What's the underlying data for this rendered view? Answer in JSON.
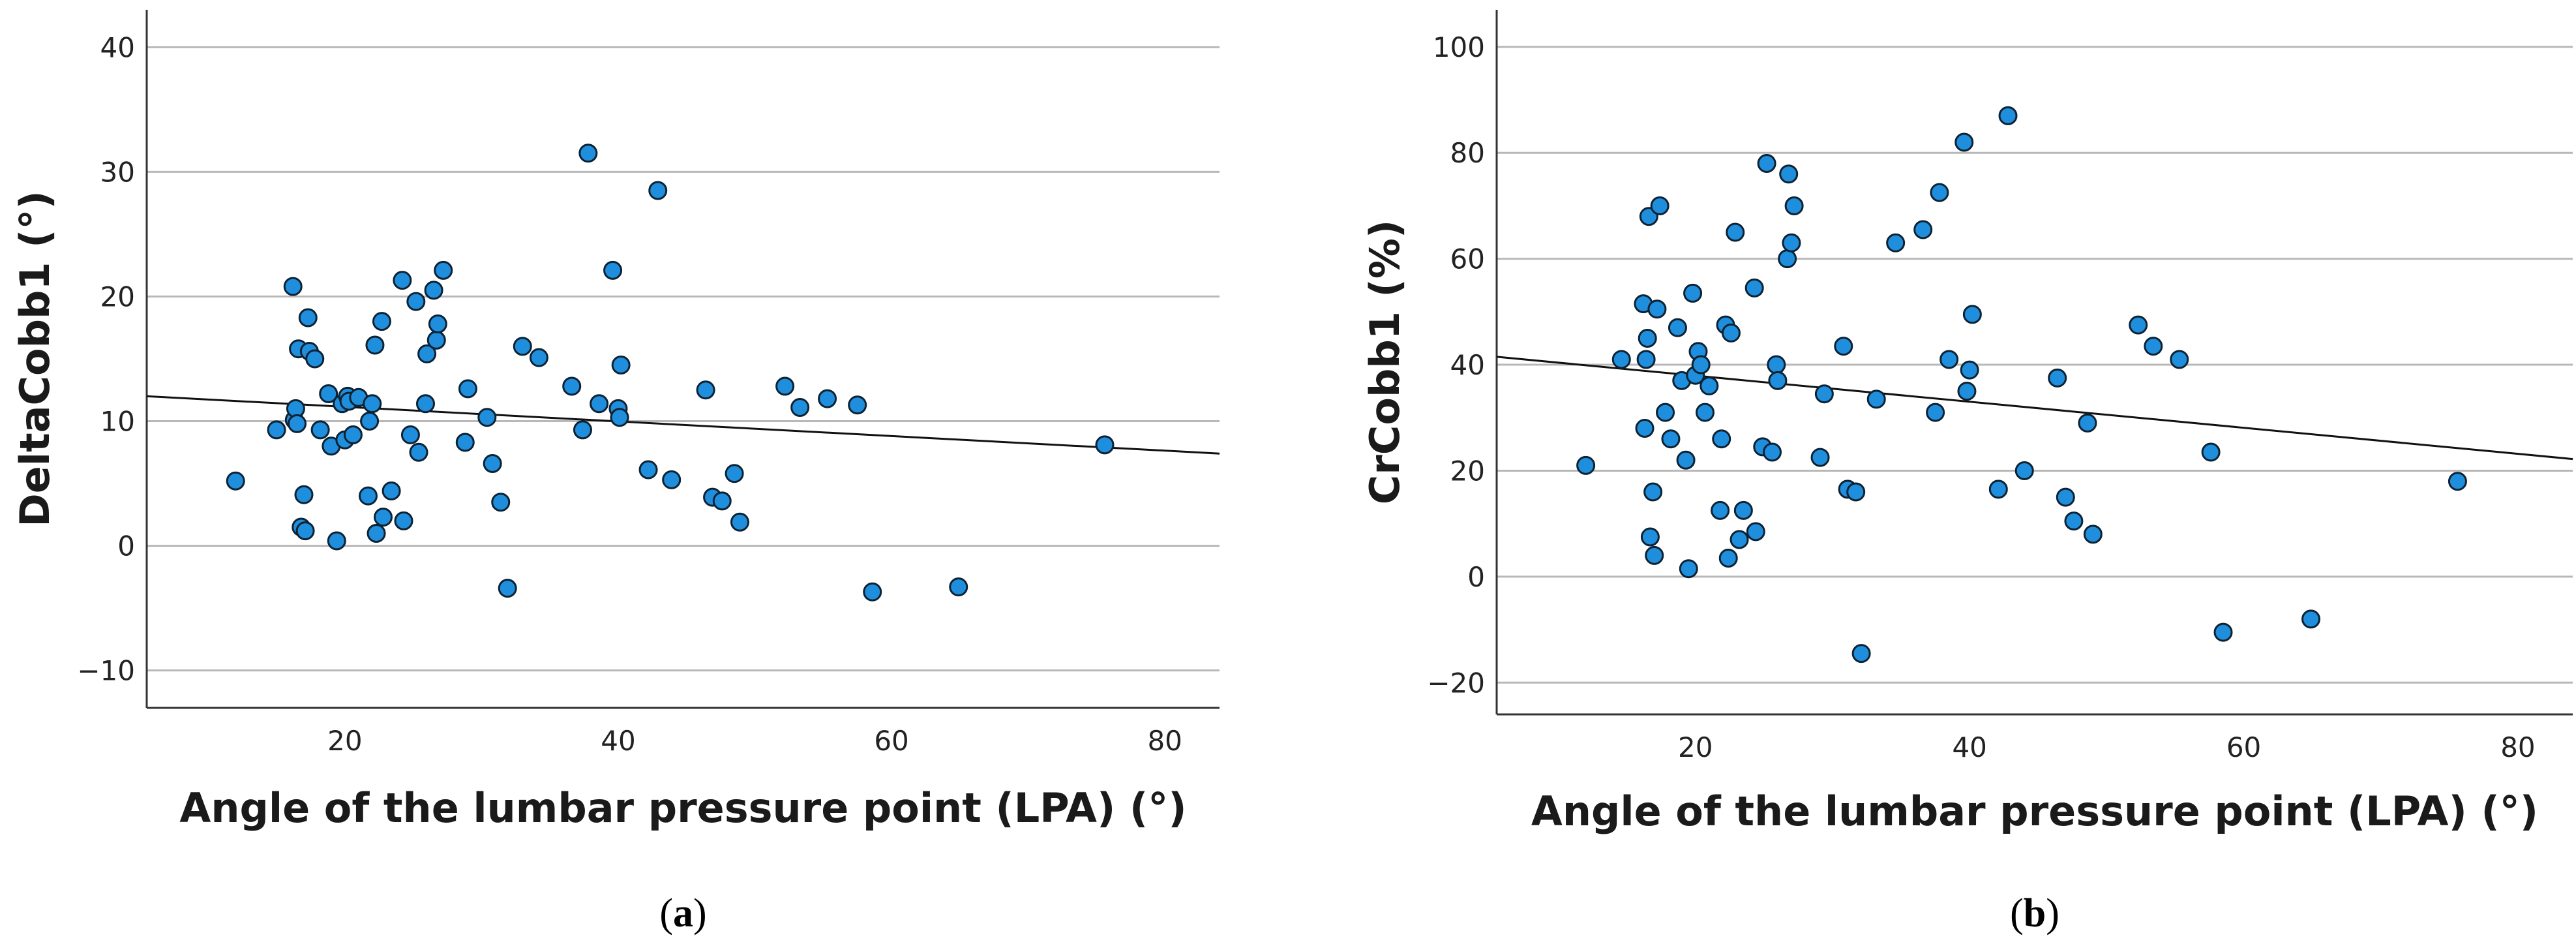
{
  "chart_data": [
    {
      "id": "a",
      "type": "scatter",
      "panel_label": "a",
      "xlabel": "Angle of the lumbar pressure point (LPA) (°)",
      "ylabel": "DeltaCobb1 (°)",
      "xlim": [
        5.5,
        84
      ],
      "ylim": [
        -13,
        43
      ],
      "xticks": [
        20,
        40,
        60,
        80
      ],
      "yticks": [
        -10,
        0,
        10,
        20,
        30,
        40
      ],
      "ytick_labels": [
        "−10",
        "0",
        "10",
        "20",
        "30",
        "40"
      ],
      "grid": "horizontal",
      "marker_color": "#1f8fdd",
      "fit_line": {
        "x": [
          5.5,
          84
        ],
        "y": [
          12.0,
          7.4
        ]
      },
      "points": [
        [
          12,
          5.2
        ],
        [
          15,
          9.3
        ],
        [
          16.2,
          20.8
        ],
        [
          16.3,
          10.1
        ],
        [
          16.4,
          11.0
        ],
        [
          16.5,
          9.8
        ],
        [
          16.6,
          15.8
        ],
        [
          16.8,
          1.5
        ],
        [
          17.0,
          4.1
        ],
        [
          17.1,
          1.2
        ],
        [
          17.3,
          18.3
        ],
        [
          17.4,
          15.6
        ],
        [
          17.8,
          15.0
        ],
        [
          18.2,
          9.3
        ],
        [
          18.8,
          12.2
        ],
        [
          19.0,
          8.0
        ],
        [
          19.4,
          0.4
        ],
        [
          19.8,
          11.4
        ],
        [
          20.0,
          8.5
        ],
        [
          20.2,
          12.0
        ],
        [
          20.3,
          11.6
        ],
        [
          20.6,
          8.9
        ],
        [
          21.0,
          11.9
        ],
        [
          21.7,
          4.0
        ],
        [
          21.8,
          10.0
        ],
        [
          22.0,
          11.4
        ],
        [
          22.2,
          16.1
        ],
        [
          22.3,
          1.0
        ],
        [
          22.7,
          18.0
        ],
        [
          22.8,
          2.3
        ],
        [
          23.4,
          4.4
        ],
        [
          24.2,
          21.3
        ],
        [
          24.3,
          2.0
        ],
        [
          24.8,
          8.9
        ],
        [
          25.2,
          19.6
        ],
        [
          25.4,
          7.5
        ],
        [
          25.9,
          11.4
        ],
        [
          26.0,
          15.4
        ],
        [
          26.5,
          20.5
        ],
        [
          26.7,
          16.5
        ],
        [
          26.8,
          17.8
        ],
        [
          27.2,
          22.1
        ],
        [
          28.8,
          8.3
        ],
        [
          29.0,
          12.6
        ],
        [
          30.4,
          10.3
        ],
        [
          30.8,
          6.6
        ],
        [
          31.4,
          3.5
        ],
        [
          31.9,
          -3.4
        ],
        [
          33.0,
          16.0
        ],
        [
          34.2,
          15.1
        ],
        [
          36.6,
          12.8
        ],
        [
          37.4,
          9.3
        ],
        [
          37.8,
          31.5
        ],
        [
          38.6,
          11.4
        ],
        [
          39.6,
          22.1
        ],
        [
          40.0,
          11.0
        ],
        [
          40.1,
          10.3
        ],
        [
          40.2,
          14.5
        ],
        [
          42.2,
          6.1
        ],
        [
          42.9,
          28.5
        ],
        [
          43.9,
          5.3
        ],
        [
          46.4,
          12.5
        ],
        [
          46.9,
          3.9
        ],
        [
          47.6,
          3.6
        ],
        [
          48.5,
          5.8
        ],
        [
          48.9,
          1.9
        ],
        [
          52.2,
          12.8
        ],
        [
          53.3,
          11.1
        ],
        [
          55.3,
          11.8
        ],
        [
          57.5,
          11.3
        ],
        [
          58.6,
          -3.7
        ],
        [
          64.9,
          -3.3
        ],
        [
          75.6,
          8.1
        ]
      ]
    },
    {
      "id": "b",
      "type": "scatter",
      "panel_label": "b",
      "xlabel": "Angle of the lumbar pressure point (LPA) (°)",
      "ylabel": "CrCobb1 (%)",
      "xlim": [
        5.5,
        84
      ],
      "ylim": [
        -26,
        107
      ],
      "xticks": [
        20,
        40,
        60,
        80
      ],
      "yticks": [
        -20,
        0,
        20,
        40,
        60,
        80,
        100
      ],
      "ytick_labels": [
        "−20",
        "0",
        "20",
        "40",
        "60",
        "80",
        "100"
      ],
      "grid": "horizontal",
      "marker_color": "#1f8fdd",
      "fit_line": {
        "x": [
          5.5,
          84
        ],
        "y": [
          41.5,
          22.2
        ]
      },
      "points": [
        [
          12,
          21
        ],
        [
          14.6,
          41
        ],
        [
          16.2,
          51.5
        ],
        [
          16.3,
          28
        ],
        [
          16.4,
          41
        ],
        [
          16.5,
          45
        ],
        [
          16.6,
          68
        ],
        [
          16.7,
          7.5
        ],
        [
          16.9,
          16
        ],
        [
          17.0,
          4
        ],
        [
          17.2,
          50.5
        ],
        [
          17.4,
          70
        ],
        [
          17.8,
          31
        ],
        [
          18.2,
          26
        ],
        [
          18.7,
          47
        ],
        [
          19.0,
          37
        ],
        [
          19.3,
          22
        ],
        [
          19.5,
          1.5
        ],
        [
          19.8,
          53.5
        ],
        [
          20.0,
          38
        ],
        [
          20.2,
          42.5
        ],
        [
          20.4,
          40
        ],
        [
          20.7,
          31
        ],
        [
          21.0,
          36
        ],
        [
          21.8,
          12.5
        ],
        [
          21.9,
          26
        ],
        [
          22.2,
          47.5
        ],
        [
          22.4,
          3.5
        ],
        [
          22.6,
          46
        ],
        [
          22.9,
          65
        ],
        [
          23.2,
          7
        ],
        [
          23.5,
          12.5
        ],
        [
          24.3,
          54.5
        ],
        [
          24.4,
          8.5
        ],
        [
          24.9,
          24.5
        ],
        [
          25.2,
          78
        ],
        [
          25.6,
          23.5
        ],
        [
          25.9,
          40
        ],
        [
          26.0,
          37
        ],
        [
          26.7,
          60
        ],
        [
          26.8,
          76
        ],
        [
          27.0,
          63
        ],
        [
          27.2,
          70
        ],
        [
          29.1,
          22.5
        ],
        [
          29.4,
          34.5
        ],
        [
          30.8,
          43.5
        ],
        [
          31.1,
          16.5
        ],
        [
          31.7,
          16
        ],
        [
          32.1,
          -14.5
        ],
        [
          33.2,
          33.5
        ],
        [
          34.6,
          63
        ],
        [
          36.6,
          65.5
        ],
        [
          37.5,
          31
        ],
        [
          37.8,
          72.5
        ],
        [
          38.5,
          41
        ],
        [
          39.6,
          82
        ],
        [
          39.8,
          35
        ],
        [
          40.0,
          39
        ],
        [
          40.2,
          49.5
        ],
        [
          42.1,
          16.5
        ],
        [
          42.8,
          87
        ],
        [
          44.0,
          20
        ],
        [
          46.4,
          37.5
        ],
        [
          47.0,
          15
        ],
        [
          47.6,
          10.5
        ],
        [
          48.6,
          29
        ],
        [
          49.0,
          8
        ],
        [
          52.3,
          47.5
        ],
        [
          53.4,
          43.5
        ],
        [
          55.3,
          41
        ],
        [
          57.6,
          23.5
        ],
        [
          58.5,
          -10.5
        ],
        [
          64.9,
          -8
        ],
        [
          75.6,
          18
        ]
      ]
    }
  ]
}
